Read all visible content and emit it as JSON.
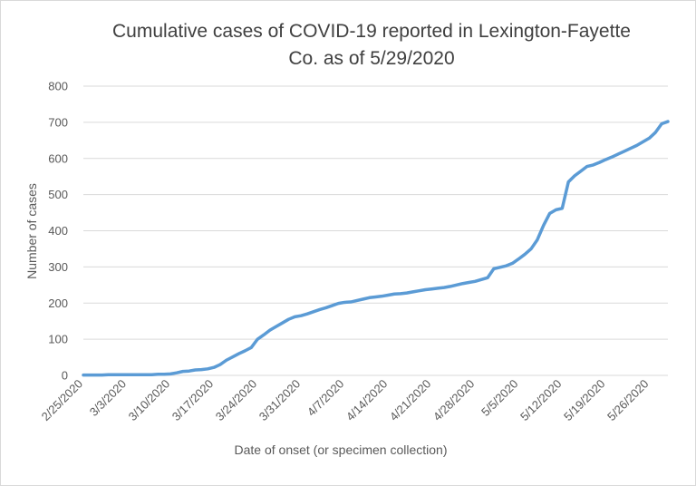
{
  "chart_data": {
    "type": "line",
    "title_line1": "Cumulative cases of COVID-19 reported in Lexington-Fayette",
    "title_line2": "Co.  as of 5/29/2020",
    "xlabel": "Date of onset (or specimen collection)",
    "ylabel": "Number of cases",
    "ylim": [
      0,
      800
    ],
    "yticks": [
      0,
      100,
      200,
      300,
      400,
      500,
      600,
      700,
      800
    ],
    "x_start": "2/25/2020",
    "x_end": "5/29/2020",
    "xtick_labels": [
      "2/25/2020",
      "3/3/2020",
      "3/10/2020",
      "3/17/2020",
      "3/24/2020",
      "3/31/2020",
      "4/7/2020",
      "4/14/2020",
      "4/21/2020",
      "4/28/2020",
      "5/5/2020",
      "5/12/2020",
      "5/19/2020",
      "5/26/2020"
    ],
    "grid": true,
    "series_color": "#5b9bd5",
    "x": [
      "2/25/2020",
      "2/26/2020",
      "2/27/2020",
      "2/28/2020",
      "2/29/2020",
      "3/1/2020",
      "3/2/2020",
      "3/3/2020",
      "3/4/2020",
      "3/5/2020",
      "3/6/2020",
      "3/7/2020",
      "3/8/2020",
      "3/9/2020",
      "3/10/2020",
      "3/11/2020",
      "3/12/2020",
      "3/13/2020",
      "3/14/2020",
      "3/15/2020",
      "3/16/2020",
      "3/17/2020",
      "3/18/2020",
      "3/19/2020",
      "3/20/2020",
      "3/21/2020",
      "3/22/2020",
      "3/23/2020",
      "3/24/2020",
      "3/25/2020",
      "3/26/2020",
      "3/27/2020",
      "3/28/2020",
      "3/29/2020",
      "3/30/2020",
      "3/31/2020",
      "4/1/2020",
      "4/2/2020",
      "4/3/2020",
      "4/4/2020",
      "4/5/2020",
      "4/6/2020",
      "4/7/2020",
      "4/8/2020",
      "4/9/2020",
      "4/10/2020",
      "4/11/2020",
      "4/12/2020",
      "4/13/2020",
      "4/14/2020",
      "4/15/2020",
      "4/16/2020",
      "4/17/2020",
      "4/18/2020",
      "4/19/2020",
      "4/20/2020",
      "4/21/2020",
      "4/22/2020",
      "4/23/2020",
      "4/24/2020",
      "4/25/2020",
      "4/26/2020",
      "4/27/2020",
      "4/28/2020",
      "4/29/2020",
      "4/30/2020",
      "5/1/2020",
      "5/2/2020",
      "5/3/2020",
      "5/4/2020",
      "5/5/2020",
      "5/6/2020",
      "5/7/2020",
      "5/8/2020",
      "5/9/2020",
      "5/10/2020",
      "5/11/2020",
      "5/12/2020",
      "5/13/2020",
      "5/14/2020",
      "5/15/2020",
      "5/16/2020",
      "5/17/2020",
      "5/18/2020",
      "5/19/2020",
      "5/20/2020",
      "5/21/2020",
      "5/22/2020",
      "5/23/2020",
      "5/24/2020",
      "5/25/2020",
      "5/26/2020",
      "5/27/2020",
      "5/28/2020",
      "5/29/2020"
    ],
    "values": [
      1,
      1,
      1,
      1,
      2,
      2,
      2,
      2,
      2,
      2,
      2,
      2,
      3,
      3,
      4,
      7,
      11,
      12,
      15,
      16,
      18,
      22,
      30,
      42,
      51,
      60,
      68,
      77,
      100,
      112,
      125,
      135,
      145,
      155,
      162,
      165,
      170,
      176,
      182,
      187,
      193,
      199,
      202,
      203,
      207,
      211,
      215,
      217,
      219,
      222,
      225,
      226,
      228,
      231,
      234,
      237,
      239,
      241,
      243,
      246,
      250,
      254,
      257,
      260,
      265,
      270,
      295,
      299,
      303,
      310,
      322,
      335,
      350,
      375,
      415,
      448,
      458,
      462,
      535,
      552,
      565,
      578,
      582,
      589,
      597,
      604,
      612,
      620,
      628,
      636,
      646,
      656,
      672,
      696,
      702
    ]
  }
}
